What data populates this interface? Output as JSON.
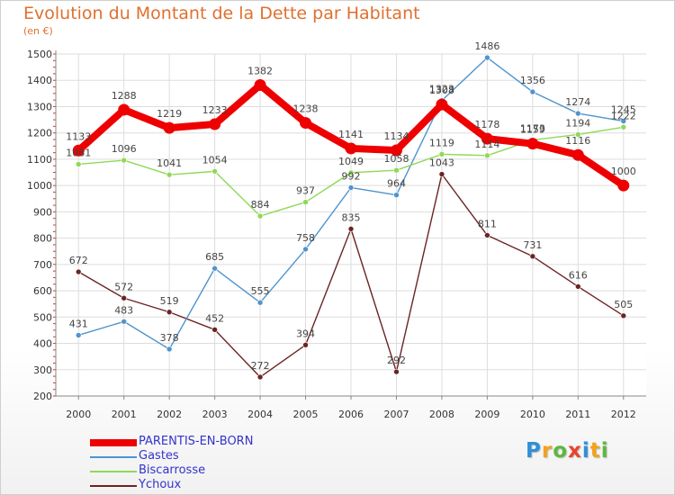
{
  "chart_data": {
    "type": "line",
    "title": "Evolution du Montant de la Dette par Habitant",
    "subtitle": "(en €)",
    "x": [
      "2000",
      "2001",
      "2002",
      "2003",
      "2004",
      "2005",
      "2006",
      "2007",
      "2008",
      "2009",
      "2010",
      "2011",
      "2012"
    ],
    "ylim": [
      200,
      1500
    ],
    "yticks": [
      200,
      300,
      400,
      500,
      600,
      700,
      800,
      900,
      1000,
      1100,
      1200,
      1300,
      1400,
      1500
    ],
    "grid": true,
    "legend_position": "bottom-left",
    "series": [
      {
        "name": "PARENTIS-EN-BORN",
        "color": "#ee0000",
        "values": [
          1133,
          1288,
          1219,
          1233,
          1382,
          1238,
          1141,
          1134,
          1308,
          1178,
          1159,
          1116,
          1000
        ]
      },
      {
        "name": "Gastes",
        "color": "#4f94cd",
        "values": [
          431,
          483,
          378,
          685,
          555,
          758,
          992,
          964,
          1323,
          1486,
          1356,
          1274,
          1245
        ]
      },
      {
        "name": "Biscarrosse",
        "color": "#8ed957",
        "values": [
          1081,
          1096,
          1041,
          1054,
          884,
          937,
          1049,
          1058,
          1119,
          1114,
          1173,
          1194,
          1222
        ]
      },
      {
        "name": "Ychoux",
        "color": "#6b2424",
        "values": [
          672,
          572,
          519,
          452,
          272,
          394,
          835,
          292,
          1043,
          811,
          731,
          616,
          505
        ]
      }
    ]
  },
  "logo": {
    "letters": [
      "P",
      "r",
      "o",
      "x",
      "i",
      "t",
      "i"
    ],
    "colors": [
      "#2f8fd8",
      "#f2a21b",
      "#5cb83c",
      "#e8452c",
      "#2f8fd8",
      "#f2a21b",
      "#5cb83c"
    ]
  }
}
